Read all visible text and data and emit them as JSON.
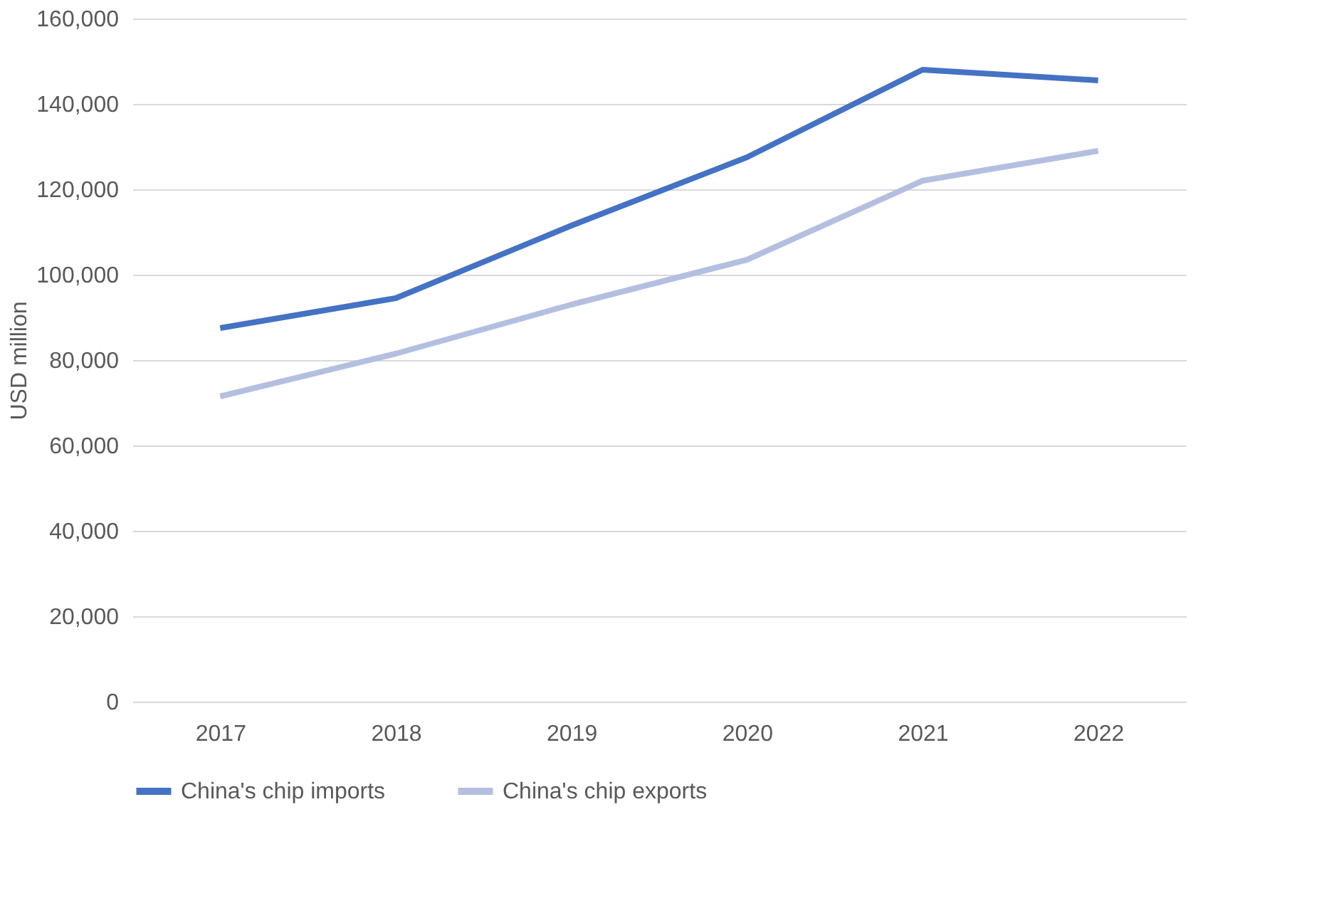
{
  "chart_data": {
    "type": "line",
    "ylabel": "USD million",
    "categories": [
      "2017",
      "2018",
      "2019",
      "2020",
      "2021",
      "2022"
    ],
    "series": [
      {
        "name": "China's chip imports",
        "color": "#4472c4",
        "values": [
          87500,
          94500,
          111500,
          127500,
          148000,
          145500
        ]
      },
      {
        "name": "China's chip exports",
        "color": "#b4bfe0",
        "values": [
          71500,
          81500,
          93000,
          103500,
          122000,
          129000
        ]
      }
    ],
    "ylim": [
      0,
      160000
    ],
    "yticks": [
      0,
      {
        "value": 20000,
        "label": "20,000"
      },
      {
        "value": 40000,
        "label": "40,000"
      },
      {
        "value": 60000,
        "label": "60,000"
      },
      {
        "value": 80000,
        "label": "80,000"
      },
      {
        "value": 100000,
        "label": "100,000"
      },
      {
        "value": 120000,
        "label": "120,000"
      },
      {
        "value": 140000,
        "label": "140,000"
      },
      {
        "value": 160000,
        "label": "160,000"
      }
    ],
    "grid": "y",
    "legend": "bottom",
    "marker": "none",
    "line_style": "solid"
  }
}
